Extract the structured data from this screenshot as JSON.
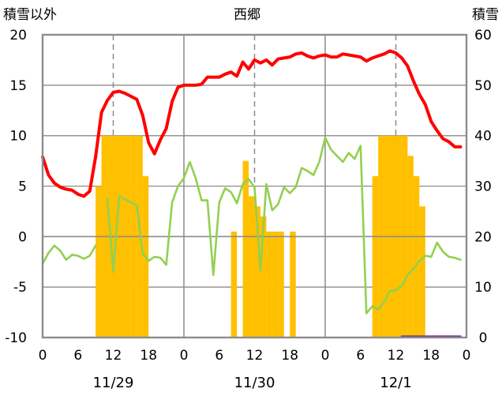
{
  "header": {
    "left_axis_title": "積雪以外",
    "station": "西郷",
    "right_axis_title": "積雪"
  },
  "chart_data": {
    "type": "line",
    "left_axis": {
      "ylim": [
        -10,
        20
      ],
      "ticks": [
        20,
        15,
        10,
        5,
        0,
        -5,
        -10
      ],
      "tick_labels": [
        "20",
        "15",
        "10",
        "5",
        "0",
        "-5",
        "-10"
      ]
    },
    "right_axis": {
      "ylim": [
        0,
        60
      ],
      "ticks": [
        60,
        50,
        40,
        30,
        20,
        10,
        0
      ],
      "tick_labels": [
        "60",
        "50",
        "40",
        "30",
        "20",
        "10",
        "0"
      ]
    },
    "x_hours_total": 72,
    "x_tick_hours": [
      0,
      6,
      12,
      18,
      24,
      30,
      36,
      42,
      48,
      54,
      60,
      66,
      72
    ],
    "x_tick_labels": [
      "0",
      "6",
      "12",
      "18",
      "0",
      "6",
      "12",
      "18",
      "0",
      "6",
      "12",
      "18",
      "0"
    ],
    "day_labels": [
      {
        "hour": 12,
        "label": "11/29"
      },
      {
        "hour": 36,
        "label": "11/30"
      },
      {
        "hour": 60,
        "label": "12/1"
      }
    ],
    "grid": true,
    "colors": {
      "temperature": "#ff0000",
      "wind": "#92d050",
      "snow_bars": "#ffc000",
      "precip": "#7030a0"
    },
    "series": [
      {
        "kind": "line",
        "axis": "left",
        "color": "#ff0000",
        "x": [
          0,
          1,
          2,
          3,
          4,
          5,
          6,
          7,
          8,
          9,
          10,
          11,
          12,
          13,
          14,
          15,
          16,
          17,
          18,
          19,
          20,
          21,
          22,
          23,
          24,
          25,
          26,
          27,
          28,
          29,
          30,
          31,
          32,
          33,
          34,
          35,
          36,
          37,
          38,
          39,
          40,
          41,
          42,
          43,
          44,
          45,
          46,
          47,
          48,
          49,
          50,
          51,
          52,
          53,
          54,
          55,
          56,
          57,
          58,
          59,
          60,
          61,
          62,
          63,
          64,
          65,
          66,
          67,
          68,
          69,
          70,
          71
        ],
        "y": [
          7.9,
          6.1,
          5.3,
          4.9,
          4.7,
          4.6,
          4.2,
          4.0,
          4.5,
          7.9,
          12.3,
          13.5,
          14.3,
          14.4,
          14.2,
          13.9,
          13.6,
          12.0,
          9.3,
          8.2,
          9.6,
          10.7,
          13.4,
          14.8,
          15.0,
          15.0,
          15.0,
          15.1,
          15.8,
          15.8,
          15.8,
          16.1,
          16.3,
          15.9,
          17.3,
          16.6,
          17.5,
          17.2,
          17.5,
          17.0,
          17.6,
          17.7,
          17.8,
          18.1,
          18.2,
          17.9,
          17.7,
          17.9,
          18.0,
          17.8,
          17.8,
          18.1,
          18.0,
          17.9,
          17.8,
          17.4,
          17.7,
          17.9,
          18.1,
          18.4,
          18.2,
          17.7,
          16.9,
          15.4,
          14.1,
          13.1,
          11.4,
          10.5,
          9.7,
          9.4,
          8.9,
          8.9
        ]
      },
      {
        "kind": "line",
        "axis": "left",
        "color": "#92d050",
        "segments": [
          {
            "x": [
              0,
              1,
              2,
              3,
              4,
              5,
              6,
              7,
              8,
              9
            ],
            "y": [
              -2.7,
              -1.6,
              -0.9,
              -1.4,
              -2.3,
              -1.8,
              -1.9,
              -2.2,
              -1.9,
              -0.9
            ]
          },
          {
            "x": [
              11,
              12,
              13,
              14,
              15,
              16,
              17,
              18,
              19,
              20,
              21,
              22,
              23,
              24,
              25,
              26,
              27,
              28,
              29,
              30,
              31,
              32,
              33,
              34,
              35,
              36,
              37,
              38,
              39,
              40,
              41,
              42,
              43,
              44,
              45,
              46,
              47,
              48,
              49,
              50,
              51,
              52,
              53,
              54,
              55,
              56,
              57,
              58,
              59,
              60,
              61,
              62,
              63,
              64,
              65,
              66,
              67,
              68,
              69,
              70,
              71
            ],
            "y": [
              3.8,
              -3.5,
              4.0,
              3.7,
              3.4,
              3.1,
              -1.7,
              -2.4,
              -2.0,
              -2.1,
              -2.8,
              3.4,
              5.0,
              5.8,
              7.4,
              5.8,
              3.6,
              3.6,
              -3.8,
              3.4,
              4.8,
              4.4,
              3.3,
              5.2,
              5.7,
              4.9,
              -3.4,
              5.2,
              2.6,
              3.2,
              4.9,
              4.3,
              4.9,
              6.8,
              6.5,
              6.1,
              7.4,
              9.8,
              8.6,
              8.0,
              7.4,
              8.3,
              7.7,
              9.0,
              -7.6,
              -6.9,
              -7.2,
              -6.5,
              -5.4,
              -5.3,
              -4.9,
              -3.8,
              -3.2,
              -2.4,
              -1.9,
              -2.0,
              -0.6,
              -1.5,
              -2.0,
              -2.1,
              -2.3
            ]
          }
        ]
      },
      {
        "kind": "bar",
        "axis": "right",
        "color": "#ffc000",
        "x": [
          9,
          10,
          11,
          12,
          13,
          14,
          15,
          16,
          17,
          32,
          34,
          35,
          36,
          37,
          38,
          39,
          40,
          42,
          56,
          57,
          58,
          59,
          60,
          61,
          62,
          63,
          64
        ],
        "y": [
          30,
          40,
          40,
          40,
          40,
          40,
          40,
          40,
          32,
          21,
          35,
          28,
          26,
          24,
          21,
          21,
          21,
          21,
          32,
          40,
          40,
          40,
          40,
          40,
          36,
          32,
          26
        ]
      },
      {
        "kind": "line",
        "axis": "right",
        "color": "#7030a0",
        "x": [
          61,
          71
        ],
        "y": [
          0.2,
          0.2
        ]
      }
    ]
  }
}
